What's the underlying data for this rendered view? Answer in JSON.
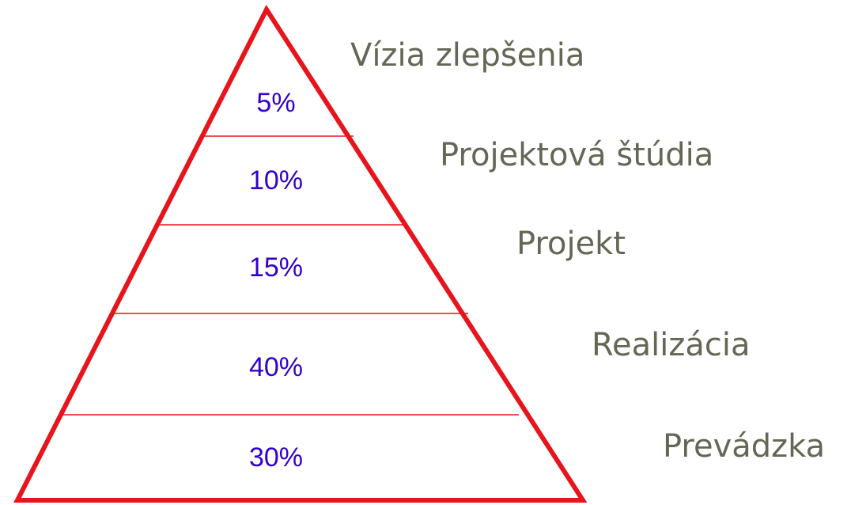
{
  "levels": [
    {
      "label": "Vízia zlepšenia",
      "share": "5%"
    },
    {
      "label": "Projektová štúdia",
      "share": "10%"
    },
    {
      "label": "Projekt",
      "share": "15%"
    },
    {
      "label": "Realizácia",
      "share": "40%"
    },
    {
      "label": "Prevádzka",
      "share": "30%"
    }
  ]
}
